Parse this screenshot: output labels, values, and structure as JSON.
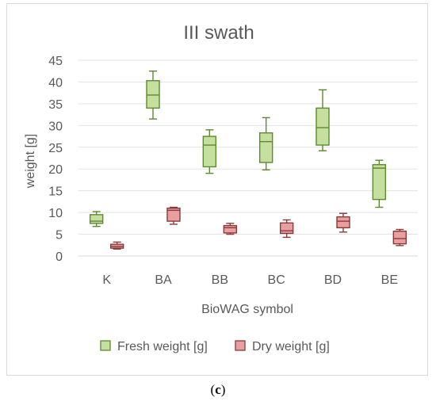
{
  "caption": {
    "open": "(",
    "letter": "c",
    "close": ")"
  },
  "chart_data": {
    "type": "box",
    "title": "III swath",
    "xlabel": "BioWAG symbol",
    "ylabel": "weight [g]",
    "ylim": [
      0,
      45
    ],
    "yticks": [
      0,
      5,
      10,
      15,
      20,
      25,
      30,
      35,
      40,
      45
    ],
    "grid": true,
    "legend_position": "bottom",
    "categories": [
      "K",
      "BA",
      "BB",
      "BC",
      "BD",
      "BE"
    ],
    "series": [
      {
        "name": "Fresh weight [g]",
        "fill": "#c5df9f",
        "stroke": "#5d8a2e",
        "boxes": [
          {
            "min": 6.8,
            "q1": 7.5,
            "median": 8.0,
            "q3": 9.5,
            "max": 10.2
          },
          {
            "min": 31.5,
            "q1": 34.0,
            "median": 37.0,
            "q3": 40.3,
            "max": 42.5
          },
          {
            "min": 19.0,
            "q1": 20.5,
            "median": 25.5,
            "q3": 27.5,
            "max": 29.0
          },
          {
            "min": 19.8,
            "q1": 21.5,
            "median": 26.3,
            "q3": 28.3,
            "max": 31.8
          },
          {
            "min": 24.2,
            "q1": 25.5,
            "median": 29.5,
            "q3": 34.0,
            "max": 38.2
          },
          {
            "min": 11.2,
            "q1": 13.0,
            "median": 20.2,
            "q3": 21.0,
            "max": 22.0
          }
        ]
      },
      {
        "name": "Dry weight [g]",
        "fill": "#e6a0a0",
        "stroke": "#8b3a3a",
        "boxes": [
          {
            "min": 1.6,
            "q1": 1.8,
            "median": 2.2,
            "q3": 2.7,
            "max": 3.2
          },
          {
            "min": 7.3,
            "q1": 8.0,
            "median": 10.5,
            "q3": 11.0,
            "max": 11.2
          },
          {
            "min": 5.0,
            "q1": 5.3,
            "median": 6.5,
            "q3": 7.0,
            "max": 7.5
          },
          {
            "min": 4.3,
            "q1": 5.2,
            "median": 5.8,
            "q3": 7.6,
            "max": 8.3
          },
          {
            "min": 5.5,
            "q1": 6.5,
            "median": 8.0,
            "q3": 9.0,
            "max": 9.8
          },
          {
            "min": 2.4,
            "q1": 2.8,
            "median": 4.0,
            "q3": 5.7,
            "max": 6.1
          }
        ]
      }
    ]
  }
}
